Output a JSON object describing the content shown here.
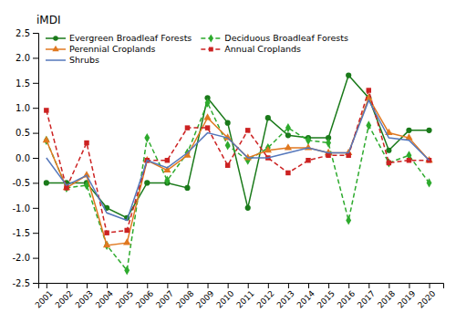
{
  "chart_data": {
    "type": "line",
    "y_label": "iMDI",
    "x": [
      2001,
      2002,
      2003,
      2004,
      2005,
      2006,
      2007,
      2008,
      2009,
      2010,
      2011,
      2012,
      2013,
      2014,
      2015,
      2016,
      2017,
      2018,
      2019,
      2020
    ],
    "xlim": [
      2000.6,
      2020.7
    ],
    "xticks": [
      2001,
      2002,
      2003,
      2004,
      2005,
      2006,
      2007,
      2008,
      2009,
      2010,
      2011,
      2012,
      2013,
      2014,
      2015,
      2016,
      2017,
      2018,
      2019,
      2020
    ],
    "ylim": [
      -2.5,
      2.5
    ],
    "yticks": [
      -2.5,
      {
        "value": -2.0,
        "label": "-2.0"
      },
      -1.5,
      {
        "value": -1.0,
        "label": "-1.0"
      },
      -0.5,
      {
        "value": 0.0,
        "label": "0.0"
      },
      0.5,
      {
        "value": 1.0,
        "label": "1.0"
      },
      1.5,
      {
        "value": 2.0,
        "label": "2.0"
      },
      2.5
    ],
    "grid": false,
    "legend": "upper left",
    "series": [
      {
        "name": "Evergreen Broadleaf Forests",
        "color": "#1a7a1a",
        "marker": "circle",
        "line_style": "solid",
        "values": [
          -0.5,
          -0.5,
          -0.5,
          -1.0,
          -1.2,
          -0.5,
          -0.5,
          -0.6,
          1.2,
          0.7,
          -1.0,
          0.8,
          0.45,
          0.4,
          0.4,
          1.65,
          1.2,
          0.15,
          0.55,
          0.55
        ]
      },
      {
        "name": "Deciduous Broadleaf Forests",
        "color": "#2daa2d",
        "marker": "diamond",
        "line_style": "dashed",
        "values": [
          0.35,
          -0.6,
          -0.55,
          -1.75,
          -2.25,
          0.4,
          -0.45,
          0.1,
          1.1,
          0.25,
          -0.05,
          0.2,
          0.6,
          0.35,
          0.3,
          -1.25,
          0.65,
          -0.1,
          0.05,
          -0.5
        ]
      },
      {
        "name": "Perennial Croplands",
        "color": "#e07820",
        "marker": "triangle",
        "line_style": "solid",
        "values": [
          0.35,
          -0.6,
          -0.35,
          -1.75,
          -1.7,
          -0.05,
          -0.25,
          0.05,
          0.8,
          0.4,
          0.0,
          0.15,
          0.2,
          0.2,
          0.1,
          0.1,
          1.2,
          0.5,
          0.4,
          -0.05
        ]
      },
      {
        "name": "Annual Croplands",
        "color": "#cc2222",
        "marker": "square",
        "line_style": "dashed",
        "values": [
          0.95,
          -0.6,
          0.3,
          -1.5,
          -1.45,
          -0.05,
          -0.05,
          0.6,
          0.6,
          -0.15,
          0.55,
          0.0,
          -0.3,
          -0.05,
          0.05,
          0.05,
          1.35,
          -0.1,
          -0.05,
          -0.05
        ]
      },
      {
        "name": "Shrubs",
        "color": "#5577bb",
        "marker": "none",
        "line_style": "solid",
        "values": [
          0.0,
          -0.55,
          -0.35,
          -1.1,
          -1.25,
          -0.05,
          -0.2,
          0.1,
          0.5,
          0.4,
          0.0,
          0.0,
          0.1,
          0.2,
          0.1,
          0.1,
          1.15,
          0.4,
          0.35,
          -0.05
        ]
      }
    ]
  }
}
